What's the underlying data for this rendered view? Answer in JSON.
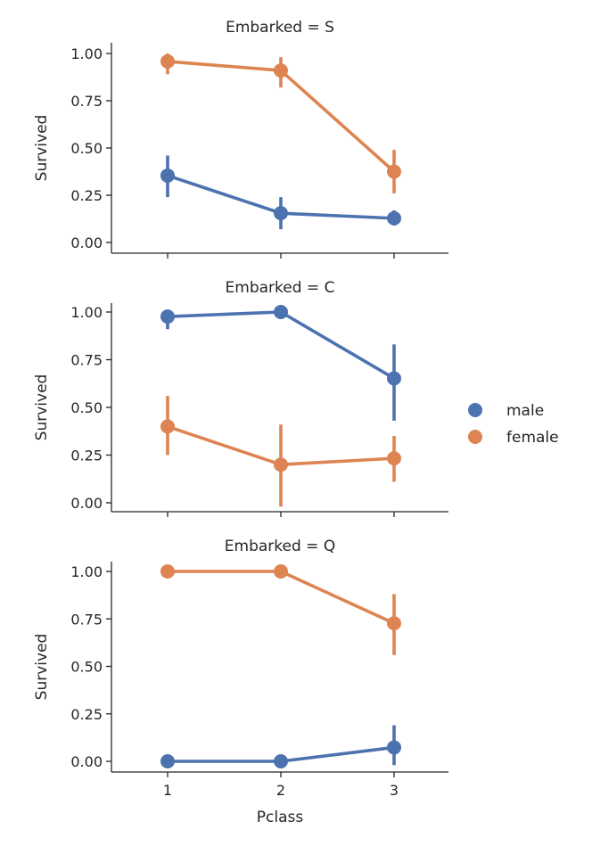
{
  "chart_data": {
    "type": "line",
    "x_label": "Pclass",
    "y_label": "Survived",
    "categories": [
      "1",
      "2",
      "3"
    ],
    "ylim": [
      -0.05,
      1.05
    ],
    "y_ticks": [
      0.0,
      0.25,
      0.5,
      0.75,
      1.0
    ],
    "y_tick_labels": [
      "0.00",
      "0.25",
      "0.50",
      "0.75",
      "1.00"
    ],
    "legend": [
      {
        "name": "male",
        "color": "#4c72b0"
      },
      {
        "name": "female",
        "color": "#dd8452"
      }
    ],
    "panels": [
      {
        "title": "Embarked = S",
        "series": [
          {
            "name": "male",
            "values": [
              0.354,
              0.155,
              0.128
            ],
            "ci": [
              [
                0.24,
                0.46
              ],
              [
                0.07,
                0.24
              ],
              [
                0.09,
                0.17
              ]
            ]
          },
          {
            "name": "female",
            "values": [
              0.958,
              0.91,
              0.375
            ],
            "ci": [
              [
                0.89,
                1.0
              ],
              [
                0.82,
                0.98
              ],
              [
                0.26,
                0.49
              ]
            ]
          }
        ]
      },
      {
        "title": "Embarked = C",
        "series": [
          {
            "name": "male",
            "values": [
              0.976,
              1.0,
              0.652
            ],
            "ci": [
              [
                0.91,
                1.0
              ],
              [
                1.0,
                1.0
              ],
              [
                0.43,
                0.83
              ]
            ]
          },
          {
            "name": "female",
            "values": [
              0.4,
              0.2,
              0.233
            ],
            "ci": [
              [
                0.25,
                0.56
              ],
              [
                -0.02,
                0.41
              ],
              [
                0.11,
                0.35
              ]
            ]
          }
        ]
      },
      {
        "title": "Embarked = Q",
        "series": [
          {
            "name": "male",
            "values": [
              0.0,
              0.0,
              0.073
            ],
            "ci": [
              [
                0.0,
                0.0
              ],
              [
                0.0,
                0.0
              ],
              [
                -0.02,
                0.19
              ]
            ]
          },
          {
            "name": "female",
            "values": [
              1.0,
              1.0,
              0.727
            ],
            "ci": [
              [
                1.0,
                1.0
              ],
              [
                1.0,
                1.0
              ],
              [
                0.56,
                0.88
              ]
            ]
          }
        ]
      }
    ]
  }
}
